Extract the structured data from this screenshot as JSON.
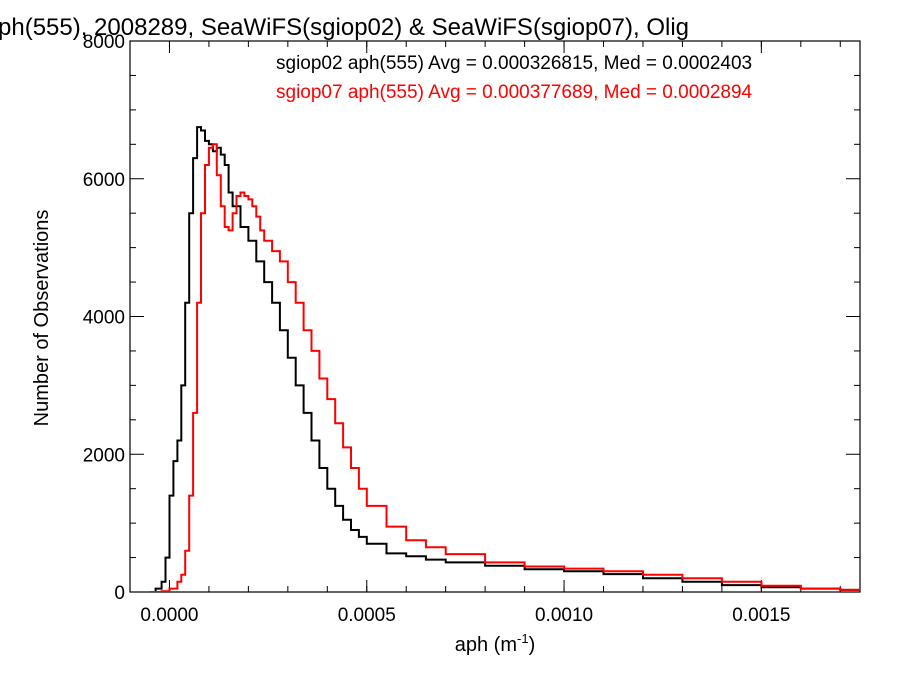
{
  "chart_data": {
    "type": "line",
    "title": "ph(555), 2008289, SeaWiFS(sgiop02) & SeaWiFS(sgiop07), Olig",
    "xlabel": "aph (m",
    "xlabel_sup": "-1",
    "xlabel_close": ")",
    "ylabel": "Number of Observations",
    "xlim": [
      -0.0001,
      0.00175
    ],
    "ylim": [
      0,
      8000
    ],
    "x_ticks": [
      0.0,
      0.0005,
      0.001,
      0.0015
    ],
    "x_tick_labels": [
      "0.0000",
      "0.0005",
      "0.0010",
      "0.0015"
    ],
    "y_ticks": [
      0,
      2000,
      4000,
      6000,
      8000
    ],
    "y_tick_labels": [
      "0",
      "2000",
      "4000",
      "6000",
      "8000"
    ],
    "grid": false,
    "legend_placement": "top-right",
    "series": [
      {
        "label": "sgiop02 aph(555) Avg = 0.000326815, Med = 0.0002403",
        "color": "#000000",
        "x": [
          -5e-05,
          -3.5e-05,
          -2e-05,
          -1e-05,
          0.0,
          1e-05,
          2e-05,
          3e-05,
          4e-05,
          5e-05,
          6e-05,
          7e-05,
          8e-05,
          9e-05,
          0.0001,
          0.00011,
          0.00012,
          0.00013,
          0.00014,
          0.00015,
          0.00016,
          0.00018,
          0.0002,
          0.00022,
          0.00024,
          0.00026,
          0.00028,
          0.0003,
          0.00032,
          0.00034,
          0.00036,
          0.00038,
          0.0004,
          0.00042,
          0.00044,
          0.00046,
          0.00048,
          0.0005,
          0.00055,
          0.0006,
          0.00065,
          0.0007,
          0.0008,
          0.0009,
          0.001,
          0.0011,
          0.0012,
          0.0013,
          0.0014,
          0.0015,
          0.0016,
          0.0017,
          0.00175
        ],
        "values": [
          0,
          50,
          150,
          500,
          1400,
          1900,
          2200,
          3000,
          4200,
          5500,
          6300,
          6750,
          6700,
          6550,
          6500,
          6400,
          6450,
          6350,
          6200,
          5800,
          5600,
          5300,
          5100,
          4800,
          4500,
          4200,
          3800,
          3400,
          3000,
          2600,
          2200,
          1800,
          1500,
          1250,
          1050,
          900,
          800,
          700,
          560,
          520,
          470,
          430,
          380,
          330,
          300,
          260,
          200,
          150,
          100,
          70,
          50,
          30,
          20
        ]
      },
      {
        "label": "sgiop07 aph(555) Avg = 0.000377689, Med = 0.0002894",
        "color": "#ff0000",
        "x": [
          -5e-05,
          -2e-05,
          0.0,
          2e-05,
          3e-05,
          4e-05,
          5e-05,
          6e-05,
          7e-05,
          8e-05,
          9e-05,
          0.0001,
          0.00011,
          0.00012,
          0.00013,
          0.00014,
          0.00015,
          0.00016,
          0.00017,
          0.00018,
          0.00019,
          0.0002,
          0.00021,
          0.00022,
          0.00023,
          0.00024,
          0.00026,
          0.00028,
          0.0003,
          0.00032,
          0.00034,
          0.00036,
          0.00038,
          0.0004,
          0.00042,
          0.00044,
          0.00046,
          0.00048,
          0.0005,
          0.00055,
          0.0006,
          0.00065,
          0.0007,
          0.0008,
          0.0009,
          0.001,
          0.0011,
          0.0012,
          0.0013,
          0.0014,
          0.0015,
          0.0016,
          0.0017,
          0.00175
        ],
        "values": [
          0,
          10,
          50,
          150,
          250,
          600,
          1400,
          2600,
          4200,
          5500,
          6200,
          6450,
          6500,
          6050,
          5600,
          5300,
          5250,
          5500,
          5750,
          5800,
          5750,
          5700,
          5600,
          5450,
          5250,
          5100,
          4950,
          4800,
          4500,
          4200,
          3800,
          3500,
          3100,
          2800,
          2450,
          2100,
          1800,
          1500,
          1250,
          950,
          750,
          650,
          550,
          430,
          370,
          340,
          300,
          250,
          200,
          150,
          90,
          50,
          30,
          20
        ]
      }
    ]
  }
}
